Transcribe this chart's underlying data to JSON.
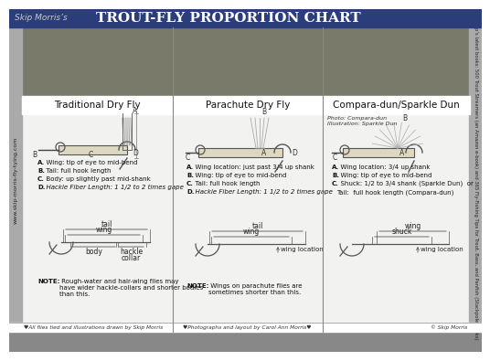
{
  "title": "Trout-Fly Proportion Chart",
  "subtitle": "Skip Morris’s",
  "header_bg": "#2c3e7a",
  "header_text_color": "#ffffff",
  "body_bg": "#ffffff",
  "sidebar_bg": "#aaaaaa",
  "sidebar_text": "www.skip-morris-fly-tying.com",
  "section_titles": [
    "Traditional Dry Fly",
    "Parachute Dry Fly",
    "Compara-dun/Sparkle Dun"
  ],
  "photo_bg": "#7a7a6a",
  "content_bg": "#f0f0ee",
  "col_bounds": [
    14,
    179,
    343,
    504
  ],
  "section1_points": [
    "A.  Wing: tip of eye to mid-bend",
    "B.  Tail: full hook length",
    "C.  Body: up slightly past mid-shank",
    "D.  Hackle Fiber Length: 1 1/2 to 2 times gape"
  ],
  "section1_note": "Rough-water and hair-wing flies may\nhave wider hackle-collars and shorter bodies\nthan this.",
  "section2_points": [
    "A.  Wing location: just past 3/4 up shank",
    "B.  Wing: tip of eye to mid-bend",
    "C.  Tail: full hook length",
    "D.  Hackle Fiber Length: 1 1/2 to 2 times gape"
  ],
  "section2_note": "Wings on parachute flies are\nsometimes shorter than this.",
  "section3_points": [
    "A.  Wing location: 3/4 up shank",
    "B.  Wing: tip of eye to mid-bend",
    "C.  Shuck: 1/2 to 3/4 shank (Sparkle Dun)  or",
    "      Tail:  full hook length (Compara-dun)"
  ],
  "footer_left": "♥All flies tied and illustrations drawn by Skip Morris",
  "footer_mid": "♥Photographs and layout by Carol Ann Morris♥",
  "footer_right": "© Skip Morris",
  "right_sidebar_text": "Skip’s latest books: 500 Trout Streamers (an Amazon e-book) and 365 Fly-Fishing Tips for Trout, Bass, and Panfish (Stackpole Books)"
}
